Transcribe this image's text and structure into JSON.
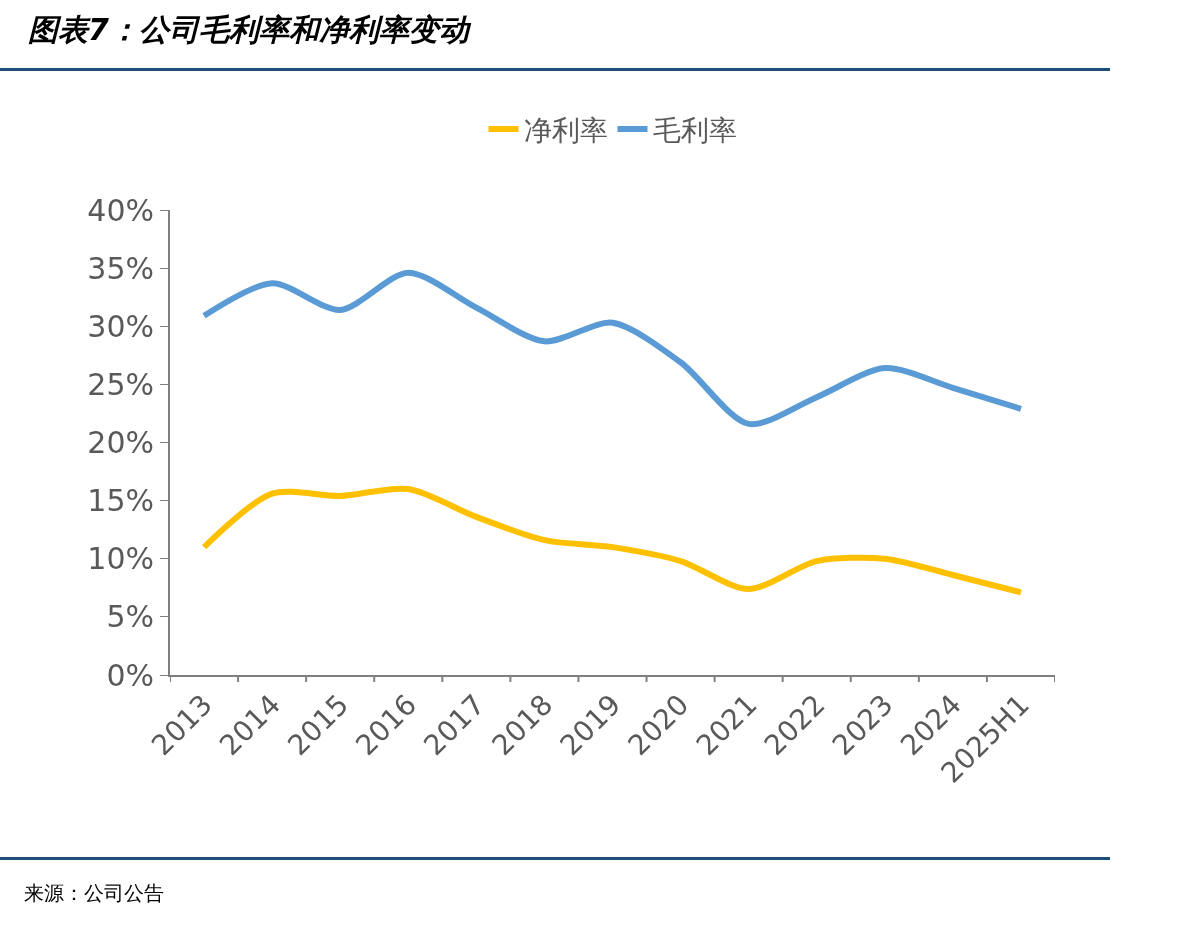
{
  "chart_data": {
    "type": "line",
    "title": "图表7：公司毛利率和净利率变动",
    "categories": [
      "2013",
      "2014",
      "2015",
      "2016",
      "2017",
      "2018",
      "2019",
      "2020",
      "2021",
      "2022",
      "2023",
      "2024",
      "2025H1"
    ],
    "series": [
      {
        "name": "净利率",
        "color": "#ffc000",
        "values": [
          11.0,
          15.6,
          15.4,
          16.0,
          13.6,
          11.6,
          11.0,
          9.8,
          7.4,
          9.8,
          10.0,
          8.6,
          7.1
        ]
      },
      {
        "name": "毛利率",
        "color": "#5b9bd5",
        "values": [
          30.9,
          33.7,
          31.4,
          34.6,
          31.6,
          28.7,
          30.3,
          26.9,
          21.6,
          23.9,
          26.4,
          24.7,
          22.9
        ]
      }
    ],
    "ylim": [
      0,
      40
    ],
    "yticks": [
      {
        "value": 0,
        "label": "0%"
      },
      {
        "value": 5,
        "label": "5%"
      },
      {
        "value": 10,
        "label": "10%"
      },
      {
        "value": 15,
        "label": "15%"
      },
      {
        "value": 20,
        "label": "20%"
      },
      {
        "value": 25,
        "label": "25%"
      },
      {
        "value": 30,
        "label": "30%"
      },
      {
        "value": 35,
        "label": "35%"
      },
      {
        "value": 40,
        "label": "40%"
      }
    ],
    "grid": false,
    "legend": "top",
    "marker": "none",
    "line_style": "solid",
    "annotations": [
      "来源：公司公告"
    ]
  }
}
